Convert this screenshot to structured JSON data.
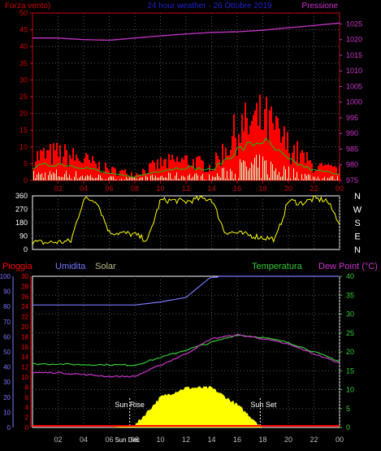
{
  "header": {
    "left": "Forza vento)",
    "center": "24 hour weather - 26 Ottobre 2019",
    "right": "Pressione"
  },
  "colors": {
    "wind": "#ff0000",
    "gust": "#ffffff",
    "wind_avg": "#00cc00",
    "pressure": "#cc33cc",
    "direction": "#ffff00",
    "rain": "#ff0000",
    "humidity": "#7777ff",
    "solar": "#ffff00",
    "temperature": "#33cc33",
    "dewpoint": "#cc33cc",
    "axis": "#cc0000",
    "grid": "#ffffff"
  },
  "x_ticks": [
    "02",
    "04",
    "06",
    "08",
    "10",
    "12",
    "14",
    "16",
    "18",
    "20",
    "22",
    "00"
  ],
  "chart_data": [
    {
      "type": "line",
      "title": "24 hour weather - 26 Ottobre 2019",
      "left_axis": {
        "label": "Forza vento)",
        "ticks": [
          0,
          5,
          10,
          15,
          20,
          25,
          30,
          35,
          40,
          45,
          50
        ],
        "ylim": [
          0,
          50
        ]
      },
      "right_axis": {
        "label": "Pressione",
        "ticks": [
          975,
          980,
          985,
          990,
          995,
          1000,
          1005,
          1010,
          1015,
          1020,
          1025
        ],
        "ylim": [
          975,
          1028.5
        ]
      },
      "x": [
        0,
        2,
        4,
        6,
        8,
        10,
        12,
        14,
        16,
        18,
        20,
        22,
        24
      ],
      "series": [
        {
          "name": "Pressione",
          "axis": "right",
          "values": [
            1020.5,
            1020.5,
            1020.0,
            1019.8,
            1020.5,
            1021.2,
            1021.8,
            1022.3,
            1022.5,
            1023.0,
            1023.8,
            1024.5,
            1025.3
          ]
        },
        {
          "name": "Forza vento",
          "axis": "left",
          "values": [
            7,
            8,
            6,
            3,
            2,
            5,
            6,
            4,
            15,
            18,
            10,
            4,
            3
          ]
        },
        {
          "name": "",
          "axis": "left",
          "values": [
            4,
            5,
            4,
            2,
            1,
            3,
            4,
            3,
            9,
            12,
            6,
            3,
            2
          ]
        }
      ]
    },
    {
      "type": "line",
      "left_axis": {
        "ticks": [
          0,
          90,
          180,
          270,
          360
        ],
        "ylim": [
          0,
          360
        ]
      },
      "right_axis": {
        "ticks": [
          "N",
          "W",
          "S",
          "E",
          "N"
        ]
      },
      "x": [
        0,
        1,
        2,
        3,
        4,
        5,
        6,
        7,
        8,
        9,
        10,
        11,
        12,
        13,
        14,
        15,
        16,
        17,
        18,
        19,
        20,
        21,
        22,
        23,
        24
      ],
      "series": [
        {
          "name": "",
          "values": [
            50,
            45,
            50,
            55,
            340,
            330,
            115,
            110,
            100,
            60,
            330,
            330,
            320,
            340,
            340,
            120,
            110,
            95,
            80,
            70,
            330,
            310,
            340,
            330,
            180
          ]
        }
      ]
    },
    {
      "type": "area",
      "labels": {
        "rain": "Pioggia",
        "humidity": "Umidita",
        "solar": "Solar",
        "temperature": "Temperatura",
        "dewpoint": "Dew Point (°C)"
      },
      "left_axis_humidity": {
        "ticks": [
          0,
          10,
          20,
          30,
          40,
          50,
          60,
          70,
          80,
          90,
          100
        ],
        "ylim": [
          0,
          100
        ]
      },
      "left_axis_rain": {
        "ticks": [
          0,
          2,
          4,
          6,
          8,
          10,
          12,
          14,
          16,
          18,
          20,
          22,
          24,
          26,
          28,
          30
        ],
        "ylim": [
          0,
          30
        ]
      },
      "right_axis": {
        "ticks": [
          0,
          5,
          10,
          15,
          20,
          25,
          30,
          35,
          40
        ],
        "ylim": [
          0,
          40
        ]
      },
      "annotations": [
        "Sun Rise",
        "Sun Set",
        "Sun Dec"
      ],
      "x": [
        0,
        2,
        4,
        6,
        8,
        10,
        12,
        14,
        16,
        18,
        20,
        22,
        24
      ],
      "series": [
        {
          "name": "Umidita",
          "values": [
            81,
            81,
            81,
            81,
            81,
            83,
            86,
            100,
            100,
            100,
            100,
            100,
            100
          ]
        },
        {
          "name": "Temperatura",
          "values": [
            16.8,
            16.8,
            16.6,
            16.6,
            16.5,
            18.5,
            20.5,
            22.5,
            24.5,
            23.8,
            22.5,
            20.0,
            17.5
          ]
        },
        {
          "name": "Dew Point (°C)",
          "values": [
            14.5,
            14.5,
            14.0,
            13.5,
            13.5,
            16.5,
            19.5,
            23.5,
            24.5,
            23.5,
            22.0,
            19.5,
            17.0
          ]
        },
        {
          "name": "Solar",
          "values": [
            0,
            0,
            0,
            0,
            0.5,
            8,
            10.5,
            10.5,
            6,
            0,
            0,
            0,
            0
          ]
        },
        {
          "name": "Pioggia",
          "values": [
            0.3,
            0.3,
            0.3,
            0.3,
            0.3,
            0.3,
            0.3,
            0.3,
            0.3,
            0.3,
            0.3,
            0.3,
            0.3
          ]
        }
      ]
    }
  ]
}
